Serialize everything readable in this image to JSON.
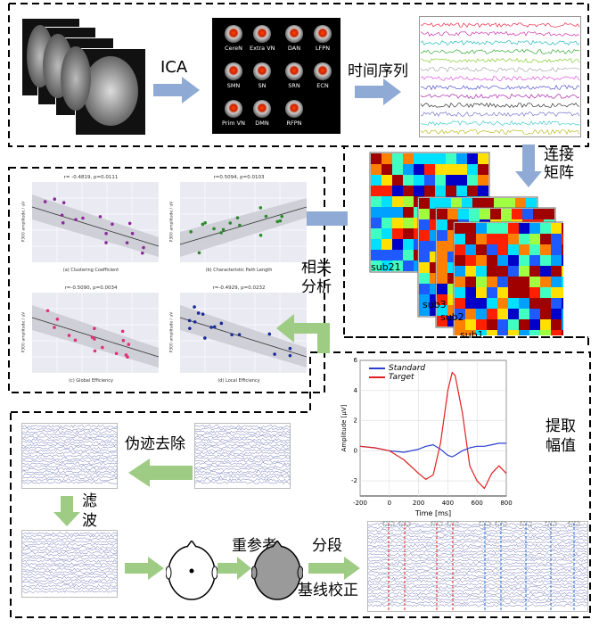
{
  "colors": {
    "arrow_blue": "#8fabd5",
    "arrow_green": "#9fcc85",
    "standard": "#2a3fd0",
    "target": "#e02020",
    "grid": "#d8d8d8"
  },
  "labels": {
    "ica": "ICA",
    "timeseries": "时间序列",
    "connect_1": "连接",
    "connect_2": "矩阵",
    "corr_1": "相关",
    "corr_2": "分析",
    "extract_1": "提取",
    "extract_2": "幅值",
    "artifact": "伪迹去除",
    "filter_1": "滤",
    "filter_2": "波",
    "reref": "重参考",
    "segment": "分段",
    "baseline": "基线校正"
  },
  "networks": [
    "CereN",
    "Extra VN",
    "DAN",
    "LFPN",
    "SMN",
    "SN",
    "SRN",
    "ECN",
    "Prim VN",
    "DMN",
    "RFPN"
  ],
  "subjects": [
    "sub21",
    "sub3",
    "sub2",
    "sub1"
  ],
  "erp": {
    "legend": [
      "Standard",
      "Target"
    ],
    "xlabel": "Time [ms]",
    "ylabel": "Amplitude [μV]",
    "xticks": [
      "-200",
      "0",
      "200",
      "400",
      "600",
      "800"
    ],
    "yticks": [
      "6",
      "4",
      "2",
      "0",
      "-2"
    ]
  },
  "scatter_plots": [
    {
      "stat": "r= -0.4819, p=0.0111",
      "xlabel": "(a) Clustering Coefficient",
      "ylabel": "P300 amplitude / uV"
    },
    {
      "stat": "r=0.5094, p=0.0103",
      "xlabel": "(b) Characteristic Path Length",
      "ylabel": "P300 amplitude / uV"
    },
    {
      "stat": "r=-0.5090, p=0.0034",
      "xlabel": "(c) Global Efficiency",
      "ylabel": "P300 amplitude / uV"
    },
    {
      "stat": "r=-0.4929, p=0.0232",
      "xlabel": "(d) Local Efficiency",
      "ylabel": "P300 amplitude / uV"
    }
  ],
  "chart_data": {
    "type": "line",
    "x": [
      -200,
      -100,
      0,
      100,
      200,
      250,
      300,
      350,
      400,
      430,
      450,
      500,
      550,
      600,
      650,
      700,
      750,
      800
    ],
    "series": [
      {
        "name": "Standard",
        "values": [
          0.3,
          0.2,
          0.0,
          -0.1,
          0.1,
          0.3,
          0.4,
          0.1,
          -0.3,
          -0.4,
          -0.3,
          0.0,
          0.2,
          0.3,
          0.3,
          0.4,
          0.5,
          0.5
        ]
      },
      {
        "name": "Target",
        "values": [
          0.3,
          0.2,
          0.0,
          -0.6,
          -1.5,
          -1.9,
          -1.6,
          0.5,
          4.0,
          5.2,
          5.0,
          2.5,
          -1.0,
          -2.0,
          -2.5,
          -1.5,
          -1.0,
          -1.5
        ]
      }
    ],
    "xlabel": "Time [ms]",
    "ylabel": "Amplitude [μV]",
    "xlim": [
      -200,
      800
    ],
    "ylim": [
      -3,
      6
    ],
    "legend": "top-left"
  }
}
